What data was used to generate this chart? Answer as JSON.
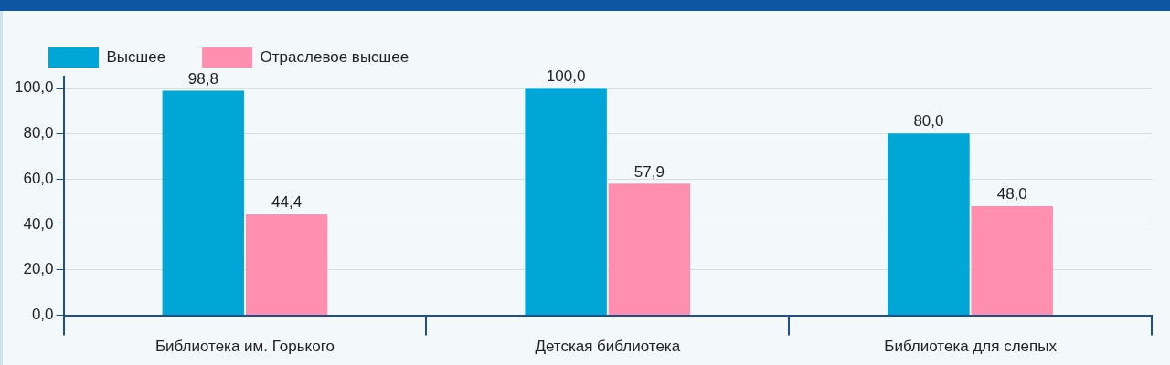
{
  "chart_data": {
    "type": "bar",
    "categories": [
      "Библиотека им. Горького",
      "Детская библиотека",
      "Библиотека для слепых"
    ],
    "series": [
      {
        "name": "Высшее",
        "color": "#00a6d6",
        "values": [
          98.8,
          100.0,
          80.0
        ],
        "value_labels": [
          "98,8",
          "100,0",
          "80,0"
        ]
      },
      {
        "name": "Отраслевое высшее",
        "color": "#ff8fae",
        "values": [
          44.4,
          57.9,
          48.0
        ],
        "value_labels": [
          "44,4",
          "57,9",
          "48,0"
        ]
      }
    ],
    "ylim": [
      0,
      105
    ],
    "yticks": [
      {
        "value": 0,
        "label": "0,0"
      },
      {
        "value": 20,
        "label": "20,0"
      },
      {
        "value": 40,
        "label": "40,0"
      },
      {
        "value": 60,
        "label": "60,0"
      },
      {
        "value": 80,
        "label": "80,0"
      },
      {
        "value": 100,
        "label": "100,0"
      }
    ],
    "grid": "y",
    "legend": "top left"
  }
}
